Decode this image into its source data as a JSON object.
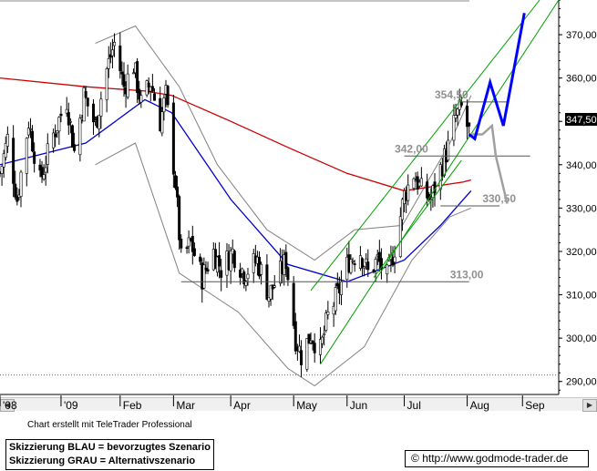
{
  "chart_data": {
    "type": "candlestick",
    "x_range": [
      "2008-12-01",
      "2009-09-20"
    ],
    "y_range": [
      287,
      378
    ],
    "y_ticks": [
      290,
      300,
      310,
      320,
      330,
      340,
      350,
      360,
      370
    ],
    "y_tick_labels": [
      "290,00",
      "300,00",
      "310,00",
      "320,00",
      "330,00",
      "340,00",
      "350,00",
      "360,00",
      "370,00"
    ],
    "x_ticks": [
      {
        "date": "2008-12-01",
        "label": "'08"
      },
      {
        "date": "2009-01-02",
        "label": "'09"
      },
      {
        "date": "2009-02-02",
        "label": "Feb"
      },
      {
        "date": "2009-03-02",
        "label": "Mar"
      },
      {
        "date": "2009-04-01",
        "label": "Apr"
      },
      {
        "date": "2009-05-04",
        "label": "May"
      },
      {
        "date": "2009-06-01",
        "label": "Jun"
      },
      {
        "date": "2009-07-01",
        "label": "Jul"
      },
      {
        "date": "2009-08-03",
        "label": "Aug"
      },
      {
        "date": "2009-09-01",
        "label": "Sep"
      }
    ],
    "last_price": "347,50",
    "price_path": [
      [
        "2008-12-01",
        338
      ],
      [
        "2008-12-05",
        346
      ],
      [
        "2008-12-10",
        332
      ],
      [
        "2008-12-16",
        350
      ],
      [
        "2008-12-22",
        336
      ],
      [
        "2008-12-29",
        347
      ],
      [
        "2009-01-05",
        355
      ],
      [
        "2009-01-09",
        343
      ],
      [
        "2009-01-14",
        356
      ],
      [
        "2009-01-20",
        349
      ],
      [
        "2009-01-26",
        362
      ],
      [
        "2009-01-30",
        368
      ],
      [
        "2009-02-04",
        358
      ],
      [
        "2009-02-09",
        363
      ],
      [
        "2009-02-13",
        354
      ],
      [
        "2009-02-18",
        359
      ],
      [
        "2009-02-23",
        350
      ],
      [
        "2009-02-26",
        356
      ],
      [
        "2009-03-03",
        336
      ],
      [
        "2009-03-06",
        318
      ],
      [
        "2009-03-11",
        322
      ],
      [
        "2009-03-17",
        314
      ],
      [
        "2009-03-23",
        320
      ],
      [
        "2009-03-27",
        316
      ],
      [
        "2009-04-02",
        320
      ],
      [
        "2009-04-08",
        315
      ],
      [
        "2009-04-15",
        318
      ],
      [
        "2009-04-21",
        310
      ],
      [
        "2009-04-27",
        315
      ],
      [
        "2009-04-30",
        318
      ],
      [
        "2009-05-05",
        300
      ],
      [
        "2009-05-08",
        296
      ],
      [
        "2009-05-13",
        301
      ],
      [
        "2009-05-18",
        297
      ],
      [
        "2009-05-22",
        305
      ],
      [
        "2009-05-27",
        310
      ],
      [
        "2009-06-02",
        318
      ],
      [
        "2009-06-08",
        320
      ],
      [
        "2009-06-12",
        315
      ],
      [
        "2009-06-17",
        318
      ],
      [
        "2009-06-22",
        314
      ],
      [
        "2009-06-26",
        321
      ],
      [
        "2009-07-01",
        333
      ],
      [
        "2009-07-06",
        338
      ],
      [
        "2009-07-10",
        334
      ],
      [
        "2009-07-15",
        332
      ],
      [
        "2009-07-20",
        339
      ],
      [
        "2009-07-24",
        344
      ],
      [
        "2009-07-28",
        351
      ],
      [
        "2009-07-31",
        353
      ],
      [
        "2009-08-04",
        347.5
      ]
    ],
    "series": [
      {
        "name": "",
        "color": "#cc0000",
        "points": [
          [
            "2008-12-01",
            360
          ],
          [
            "2009-01-15",
            358
          ],
          [
            "2009-02-15",
            357
          ],
          [
            "2009-03-01",
            356
          ],
          [
            "2009-04-01",
            350
          ],
          [
            "2009-05-01",
            344
          ],
          [
            "2009-06-01",
            338
          ],
          [
            "2009-07-01",
            334
          ],
          [
            "2009-08-01",
            336
          ],
          [
            "2009-08-05",
            336.5
          ]
        ]
      },
      {
        "name": "",
        "color": "#0000cc",
        "points": [
          [
            "2008-12-01",
            340
          ],
          [
            "2009-01-15",
            345
          ],
          [
            "2009-02-15",
            355
          ],
          [
            "2009-03-01",
            352
          ],
          [
            "2009-04-01",
            332
          ],
          [
            "2009-05-01",
            317
          ],
          [
            "2009-06-01",
            313
          ],
          [
            "2009-07-01",
            318
          ],
          [
            "2009-07-20",
            326
          ],
          [
            "2009-08-05",
            334
          ]
        ]
      },
      {
        "name": "",
        "color": "#808080",
        "points": [
          [
            "2009-01-20",
            368
          ],
          [
            "2009-02-10",
            372
          ],
          [
            "2009-03-05",
            358
          ],
          [
            "2009-03-25",
            340
          ],
          [
            "2009-04-20",
            325
          ],
          [
            "2009-05-15",
            318
          ],
          [
            "2009-06-05",
            325
          ],
          [
            "2009-06-30",
            326
          ],
          [
            "2009-07-25",
            345
          ],
          [
            "2009-08-05",
            356
          ]
        ]
      },
      {
        "name": "",
        "color": "#808080",
        "points": [
          [
            "2009-01-20",
            340
          ],
          [
            "2009-02-10",
            345
          ],
          [
            "2009-03-05",
            315
          ],
          [
            "2009-04-05",
            306
          ],
          [
            "2009-05-01",
            293
          ],
          [
            "2009-05-15",
            289
          ],
          [
            "2009-06-10",
            298
          ],
          [
            "2009-07-05",
            318
          ],
          [
            "2009-07-25",
            328
          ],
          [
            "2009-08-05",
            330
          ]
        ]
      }
    ],
    "trend_channel": [
      {
        "from": [
          "2009-05-18",
          294
        ],
        "to": [
          "2009-09-20",
          378
        ]
      },
      {
        "from": [
          "2009-05-13",
          311
        ],
        "to": [
          "2009-09-10",
          378
        ]
      },
      {
        "from": [
          "2009-06-15",
          314
        ],
        "to": [
          "2009-07-31",
          341
        ]
      }
    ],
    "levels": [
      {
        "value": 354.5,
        "label": "354,50",
        "from": "2009-07-31",
        "to": "2009-08-24",
        "label_at": "2009-07-17"
      },
      {
        "value": 342.0,
        "label": "342,00",
        "from": "2009-07-01",
        "to": "2009-09-05",
        "label_at": "2009-06-26"
      },
      {
        "value": 330.5,
        "label": "330,50",
        "from": "2009-07-20",
        "to": "2009-08-20",
        "label_at": "2009-08-11"
      },
      {
        "value": 313.0,
        "label": "313,00",
        "from": "2009-03-06",
        "to": "2009-08-04",
        "label_at": "2009-07-25"
      }
    ],
    "scenario_blue": [
      [
        "2009-08-04",
        347
      ],
      [
        "2009-08-07",
        346
      ],
      [
        "2009-08-15",
        359
      ],
      [
        "2009-08-22",
        349
      ],
      [
        "2009-09-02",
        375
      ]
    ],
    "scenario_grey": [
      [
        "2009-08-04",
        347
      ],
      [
        "2009-08-11",
        347
      ],
      [
        "2009-08-16",
        349
      ],
      [
        "2009-08-18",
        342
      ],
      [
        "2009-08-24",
        331
      ]
    ]
  },
  "footer": {
    "credit": "Chart erstellt mit TeleTrader Professional",
    "legend_blue": "Skizzierung BLAU = bevorzugtes Szenario",
    "legend_grey": "Skizzierung GRAU = Alternativszenario",
    "copyright_symbol": "©",
    "url": "http://www.godmode-trader.de"
  }
}
